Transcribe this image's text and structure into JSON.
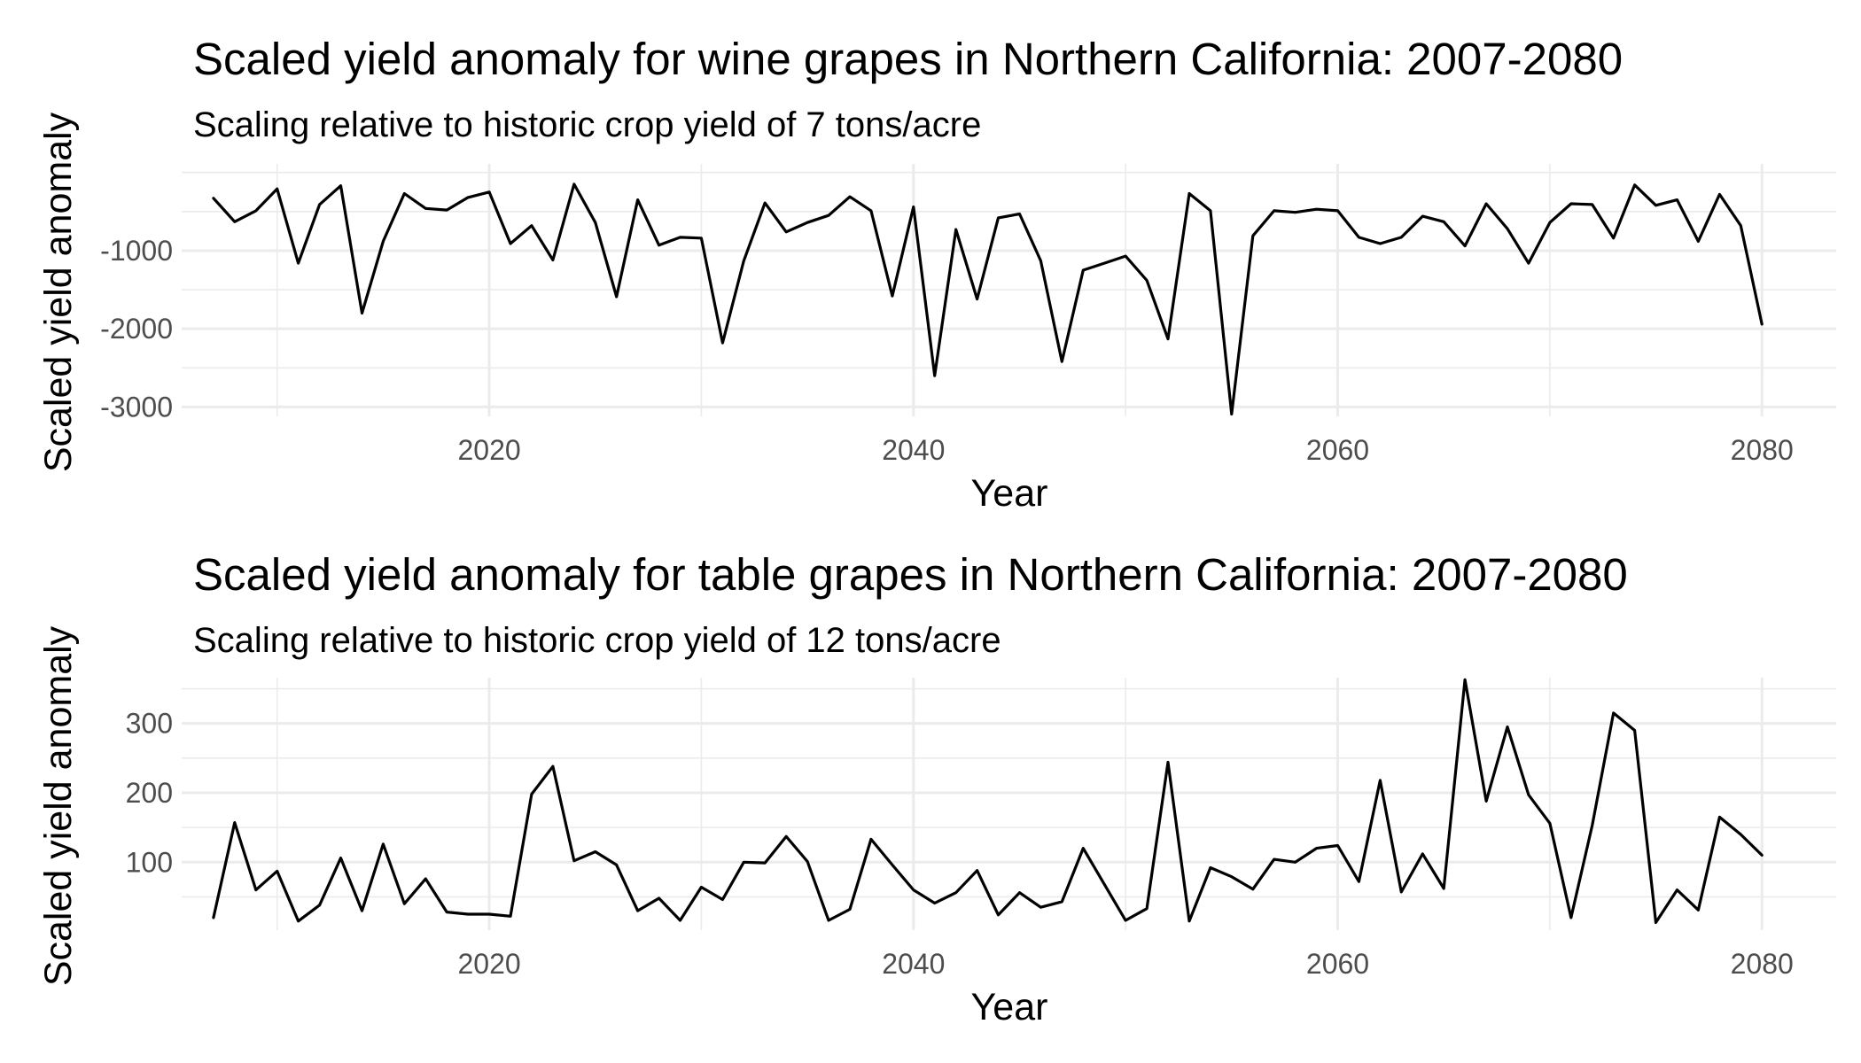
{
  "chart_data": [
    {
      "type": "line",
      "title": "Scaled yield anomaly for wine grapes in Northern California: 2007-2080",
      "subtitle": "Scaling relative to historic crop yield of 7 tons/acre",
      "xlabel": "Year",
      "ylabel": "Scaled yield anomaly",
      "xlim": [
        2005.5,
        2083.5
      ],
      "ylim": [
        -3120,
        110
      ],
      "x_ticks": [
        2020,
        2040,
        2060,
        2080
      ],
      "y_ticks": [
        -1000,
        -2000,
        -3000
      ],
      "x_minor": [
        2010,
        2030,
        2050,
        2070
      ],
      "y_minor": [
        0,
        -500,
        -1500,
        -2500
      ],
      "grid": true,
      "legend": "none",
      "color": "#000000",
      "x": [
        2007,
        2008,
        2009,
        2010,
        2011,
        2012,
        2013,
        2014,
        2015,
        2016,
        2017,
        2018,
        2019,
        2020,
        2021,
        2022,
        2023,
        2024,
        2025,
        2026,
        2027,
        2028,
        2029,
        2030,
        2031,
        2032,
        2033,
        2034,
        2035,
        2036,
        2037,
        2038,
        2039,
        2040,
        2041,
        2042,
        2043,
        2044,
        2045,
        2046,
        2047,
        2048,
        2049,
        2050,
        2051,
        2052,
        2053,
        2054,
        2055,
        2056,
        2057,
        2058,
        2059,
        2060,
        2061,
        2062,
        2063,
        2064,
        2065,
        2066,
        2067,
        2068,
        2069,
        2070,
        2071,
        2072,
        2073,
        2074,
        2075,
        2076,
        2077,
        2078,
        2079,
        2080
      ],
      "y": [
        -330,
        -630,
        -490,
        -210,
        -1160,
        -410,
        -170,
        -1800,
        -880,
        -270,
        -460,
        -480,
        -320,
        -250,
        -910,
        -680,
        -1120,
        -150,
        -640,
        -1590,
        -350,
        -930,
        -830,
        -840,
        -2180,
        -1130,
        -390,
        -760,
        -640,
        -550,
        -310,
        -490,
        -1580,
        -440,
        -2600,
        -730,
        -1620,
        -580,
        -530,
        -1130,
        -2420,
        -1250,
        -1160,
        -1070,
        -1380,
        -2130,
        -270,
        -490,
        -3090,
        -810,
        -490,
        -510,
        -470,
        -490,
        -830,
        -910,
        -830,
        -560,
        -630,
        -940,
        -400,
        -720,
        -1160,
        -640,
        -400,
        -410,
        -840,
        -160,
        -420,
        -350,
        -880,
        -280,
        -680,
        -1940
      ]
    },
    {
      "type": "line",
      "title": "Scaled yield anomaly for table grapes in Northern California: 2007-2080",
      "subtitle": "Scaling relative to historic crop yield of 12 tons/acre",
      "xlabel": "Year",
      "ylabel": "Scaled yield anomaly",
      "xlim": [
        2005.5,
        2083.5
      ],
      "ylim": [
        2,
        366
      ],
      "x_ticks": [
        2020,
        2040,
        2060,
        2080
      ],
      "y_ticks": [
        100,
        200,
        300
      ],
      "x_minor": [
        2010,
        2030,
        2050,
        2070
      ],
      "y_minor": [
        50,
        150,
        250,
        350
      ],
      "grid": true,
      "legend": "none",
      "color": "#000000",
      "x": [
        2007,
        2008,
        2009,
        2010,
        2011,
        2012,
        2013,
        2014,
        2015,
        2016,
        2017,
        2018,
        2019,
        2020,
        2021,
        2022,
        2023,
        2024,
        2025,
        2026,
        2027,
        2028,
        2029,
        2030,
        2031,
        2032,
        2033,
        2034,
        2035,
        2036,
        2037,
        2038,
        2039,
        2040,
        2041,
        2042,
        2043,
        2044,
        2045,
        2046,
        2047,
        2048,
        2049,
        2050,
        2051,
        2052,
        2053,
        2054,
        2055,
        2056,
        2057,
        2058,
        2059,
        2060,
        2061,
        2062,
        2063,
        2064,
        2065,
        2066,
        2067,
        2068,
        2069,
        2070,
        2071,
        2072,
        2073,
        2074,
        2075,
        2076,
        2077,
        2078,
        2079,
        2080
      ],
      "y": [
        20,
        157,
        60,
        87,
        15,
        38,
        106,
        30,
        126,
        40,
        76,
        28,
        25,
        25,
        22,
        198,
        238,
        102,
        115,
        96,
        30,
        48,
        16,
        64,
        46,
        100,
        99,
        137,
        101,
        16,
        32,
        133,
        96,
        60,
        41,
        56,
        88,
        24,
        56,
        35,
        43,
        120,
        68,
        16,
        33,
        244,
        15,
        92,
        79,
        61,
        104,
        100,
        120,
        124,
        72,
        218,
        57,
        112,
        62,
        363,
        188,
        295,
        197,
        156,
        20,
        153,
        315,
        290,
        13,
        60,
        31,
        165,
        140,
        110
      ]
    }
  ]
}
